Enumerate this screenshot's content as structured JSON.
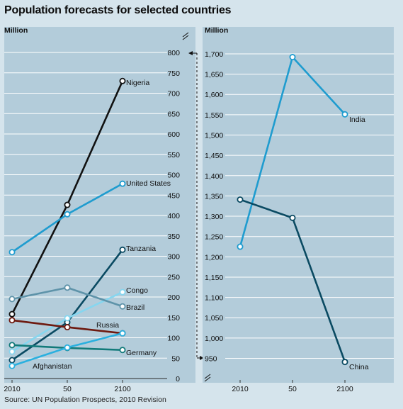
{
  "title": "Population forecasts for selected countries",
  "source": "Source: UN Population Prospects, 2010 Revision",
  "colors": {
    "background": "#d5e4ec",
    "plot_background": "#b3ccda",
    "gridline": "#ffffff"
  },
  "chart_data": [
    {
      "type": "line",
      "ylabel": "Million",
      "x_tick_labels": [
        "2010",
        "50",
        "2100"
      ],
      "x": [
        2010,
        2050,
        2100
      ],
      "ylim": [
        0,
        800
      ],
      "y_ticks": [
        0,
        50,
        100,
        150,
        200,
        250,
        300,
        350,
        400,
        450,
        500,
        550,
        600,
        650,
        700,
        750,
        800
      ],
      "y_tick_labels": [
        "0",
        "50",
        "100",
        "150",
        "200",
        "250",
        "300",
        "350",
        "400",
        "450",
        "500",
        "550",
        "600",
        "650",
        "700",
        "750",
        "800"
      ],
      "axis_break": true,
      "grid": true,
      "series": [
        {
          "name": "Nigeria",
          "color": "#111111",
          "values": [
            158,
            426,
            730
          ]
        },
        {
          "name": "United States",
          "color": "#1f9ccf",
          "values": [
            310,
            403,
            478
          ]
        },
        {
          "name": "Tanzania",
          "color": "#0a4a62",
          "values": [
            45,
            138,
            316
          ]
        },
        {
          "name": "Congo",
          "color": "#86d6ef",
          "values": [
            66,
            148,
            212
          ]
        },
        {
          "name": "Brazil",
          "color": "#5e93a9",
          "values": [
            195,
            223,
            177
          ]
        },
        {
          "name": "Russia",
          "color": "#6e1a10",
          "values": [
            143,
            126,
            111
          ]
        },
        {
          "name": "Germany",
          "color": "#127a7a",
          "values": [
            82,
            75,
            70
          ]
        },
        {
          "name": "Afghanistan",
          "color": "#2ab0df",
          "values": [
            31,
            76,
            111
          ]
        }
      ]
    },
    {
      "type": "line",
      "ylabel": "Million",
      "x_tick_labels": [
        "2010",
        "50",
        "2100"
      ],
      "x": [
        2010,
        2050,
        2100
      ],
      "ylim": [
        950,
        1700
      ],
      "y_ticks": [
        950,
        1000,
        1050,
        1100,
        1150,
        1200,
        1250,
        1300,
        1350,
        1400,
        1450,
        1500,
        1550,
        1600,
        1650,
        1700
      ],
      "y_tick_labels": [
        "950",
        "1,000",
        "1,050",
        "1,100",
        "1,150",
        "1,200",
        "1,250",
        "1,300",
        "1,350",
        "1,400",
        "1,450",
        "1,500",
        "1,550",
        "1,600",
        "1,650",
        "1,700"
      ],
      "axis_break": true,
      "grid": true,
      "series": [
        {
          "name": "India",
          "color": "#1f9ccf",
          "values": [
            1225,
            1692,
            1551
          ]
        },
        {
          "name": "China",
          "color": "#0a4a62",
          "values": [
            1341,
            1296,
            941
          ]
        }
      ]
    }
  ]
}
